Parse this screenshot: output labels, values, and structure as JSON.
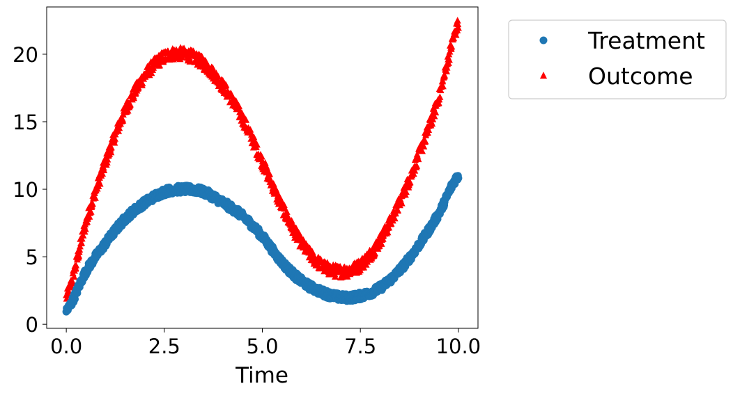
{
  "chart_data": {
    "type": "scatter",
    "xlabel": "Time",
    "ylabel": "",
    "xlim": [
      -0.5,
      10.5
    ],
    "ylim": [
      -0.3,
      23.5
    ],
    "xticks": [
      0.0,
      2.5,
      5.0,
      7.5,
      10.0
    ],
    "xtick_labels": [
      "0.0",
      "2.5",
      "5.0",
      "7.5",
      "10.0"
    ],
    "yticks": [
      0,
      5,
      10,
      15,
      20
    ],
    "ytick_labels": [
      "0",
      "5",
      "10",
      "15",
      "20"
    ],
    "grid": false,
    "legend_position": "outside-top-right",
    "series": [
      {
        "name": "Treatment",
        "marker": "circle",
        "color": "#1f77b4",
        "band": 0.55,
        "x": [
          0.0,
          0.5,
          1.0,
          1.5,
          2.0,
          2.5,
          3.0,
          3.5,
          4.0,
          4.5,
          5.0,
          5.5,
          6.0,
          6.5,
          7.0,
          7.5,
          8.0,
          8.5,
          9.0,
          9.5,
          10.0
        ],
        "y": [
          1.0,
          3.9,
          6.0,
          7.8,
          9.0,
          9.8,
          10.0,
          9.8,
          9.0,
          8.0,
          6.5,
          4.6,
          3.2,
          2.4,
          2.0,
          2.1,
          2.7,
          4.0,
          5.9,
          8.2,
          11.0
        ]
      },
      {
        "name": "Outcome",
        "marker": "triangle",
        "color": "#ff0000",
        "band": 0.9,
        "x": [
          0.0,
          0.5,
          1.0,
          1.5,
          2.0,
          2.5,
          3.0,
          3.5,
          4.0,
          4.5,
          5.0,
          5.5,
          6.0,
          6.5,
          7.0,
          7.5,
          8.0,
          8.5,
          9.0,
          9.5,
          10.0
        ],
        "y": [
          2.0,
          7.5,
          12.0,
          15.8,
          18.4,
          19.8,
          20.0,
          19.3,
          17.6,
          15.2,
          12.0,
          8.7,
          6.0,
          4.4,
          3.9,
          4.4,
          6.2,
          9.0,
          12.6,
          16.8,
          22.2
        ]
      }
    ]
  }
}
